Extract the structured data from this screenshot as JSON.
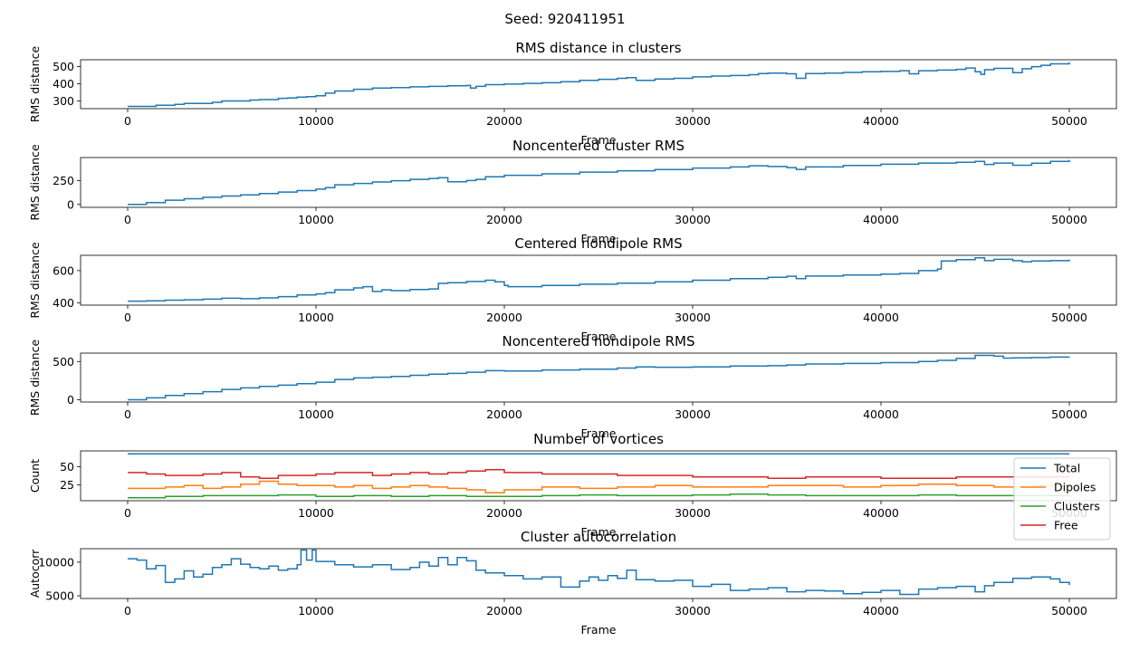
{
  "suptitle": "Seed: 920411951",
  "chart_data": [
    {
      "type": "line",
      "title": "RMS distance in clusters",
      "xlabel": "Frame",
      "ylabel": "RMS distance",
      "xlim": [
        -2500,
        52500
      ],
      "ylim": [
        255,
        540
      ],
      "xticks": [
        0,
        10000,
        20000,
        30000,
        40000,
        50000
      ],
      "yticks": [
        300,
        400,
        500
      ],
      "series": [
        {
          "color": "#1f77b4",
          "x": [
            0,
            1000,
            1500,
            2500,
            3000,
            4500,
            5000,
            6500,
            7000,
            8000,
            8500,
            9000,
            9500,
            10000,
            10500,
            11000,
            12000,
            13000,
            14000,
            15000,
            16000,
            17000,
            18000,
            18200,
            18500,
            19000,
            20000,
            21000,
            22000,
            23000,
            24000,
            25000,
            26000,
            26500,
            27000,
            28000,
            29000,
            30000,
            31000,
            32000,
            33000,
            33500,
            34000,
            35000,
            35500,
            36000,
            37000,
            38000,
            39000,
            40000,
            41000,
            41500,
            42000,
            43000,
            44000,
            44500,
            45000,
            45300,
            45500,
            46000,
            46500,
            47000,
            47500,
            48000,
            48500,
            49000,
            50000
          ],
          "y": [
            268,
            268,
            275,
            280,
            285,
            292,
            300,
            305,
            308,
            315,
            318,
            322,
            325,
            330,
            345,
            358,
            368,
            375,
            378,
            382,
            385,
            388,
            390,
            375,
            385,
            395,
            398,
            402,
            406,
            412,
            420,
            426,
            432,
            436,
            420,
            428,
            432,
            440,
            445,
            448,
            453,
            460,
            462,
            458,
            432,
            460,
            462,
            466,
            470,
            472,
            476,
            458,
            476,
            480,
            484,
            492,
            470,
            455,
            482,
            490,
            490,
            465,
            488,
            500,
            508,
            516,
            525
          ]
        }
      ]
    },
    {
      "type": "line",
      "title": "Noncentered cluster RMS",
      "xlabel": "Frame",
      "ylabel": "RMS distance",
      "xlim": [
        -2500,
        52500
      ],
      "ylim": [
        -30,
        490
      ],
      "xticks": [
        0,
        10000,
        20000,
        30000,
        40000,
        50000
      ],
      "yticks": [
        0,
        250
      ],
      "series": [
        {
          "color": "#1f77b4",
          "x": [
            0,
            1000,
            2000,
            3000,
            4000,
            5000,
            6000,
            7000,
            8000,
            9000,
            10000,
            10500,
            11000,
            12000,
            13000,
            14000,
            15000,
            16000,
            16500,
            17000,
            18000,
            18500,
            19000,
            20000,
            22000,
            24000,
            26000,
            28000,
            30000,
            32000,
            33000,
            34000,
            35000,
            35500,
            36000,
            38000,
            40000,
            42000,
            44000,
            45000,
            45500,
            46000,
            47000,
            48000,
            49000,
            50000
          ],
          "y": [
            0,
            20,
            45,
            60,
            75,
            88,
            100,
            115,
            130,
            145,
            160,
            175,
            205,
            220,
            235,
            248,
            262,
            272,
            280,
            238,
            250,
            262,
            290,
            305,
            320,
            338,
            352,
            365,
            380,
            392,
            404,
            396,
            385,
            366,
            392,
            408,
            420,
            432,
            440,
            450,
            418,
            432,
            410,
            430,
            450,
            465
          ]
        }
      ]
    },
    {
      "type": "line",
      "title": "Centered nondipole RMS",
      "xlabel": "Frame",
      "ylabel": "RMS distance",
      "xlim": [
        -2500,
        52500
      ],
      "ylim": [
        385,
        695
      ],
      "xticks": [
        0,
        10000,
        20000,
        30000,
        40000,
        50000
      ],
      "yticks": [
        400,
        600
      ],
      "series": [
        {
          "color": "#1f77b4",
          "x": [
            0,
            1000,
            2000,
            3000,
            4000,
            5000,
            6000,
            7000,
            8000,
            9000,
            10000,
            10500,
            11000,
            12000,
            12500,
            13000,
            13500,
            14000,
            15000,
            16000,
            16500,
            17000,
            18000,
            19000,
            19500,
            20000,
            20200,
            22000,
            24000,
            26000,
            28000,
            30000,
            32000,
            34000,
            35000,
            35500,
            36000,
            38000,
            40000,
            41000,
            42000,
            43000,
            43200,
            44000,
            45000,
            45500,
            46000,
            47000,
            47500,
            48000,
            49000,
            50000
          ],
          "y": [
            410,
            412,
            416,
            418,
            422,
            428,
            425,
            430,
            438,
            448,
            455,
            462,
            480,
            492,
            500,
            470,
            480,
            475,
            482,
            486,
            520,
            525,
            532,
            540,
            530,
            508,
            500,
            508,
            515,
            522,
            530,
            540,
            550,
            558,
            565,
            550,
            566,
            572,
            578,
            582,
            600,
            610,
            660,
            668,
            680,
            662,
            670,
            662,
            655,
            660,
            662,
            668
          ]
        }
      ]
    },
    {
      "type": "line",
      "title": "Noncentered nondipole RMS",
      "xlabel": "Frame",
      "ylabel": "RMS distance",
      "xlim": [
        -2500,
        52500
      ],
      "ylim": [
        -30,
        610
      ],
      "xticks": [
        0,
        10000,
        20000,
        30000,
        40000,
        50000
      ],
      "yticks": [
        0,
        500
      ],
      "series": [
        {
          "color": "#1f77b4",
          "x": [
            0,
            1000,
            2000,
            3000,
            4000,
            5000,
            6000,
            7000,
            8000,
            9000,
            10000,
            11000,
            12000,
            13000,
            14000,
            15000,
            16000,
            17000,
            18000,
            19000,
            20000,
            22000,
            24000,
            26000,
            27000,
            28000,
            30000,
            32000,
            34000,
            35000,
            36000,
            38000,
            40000,
            42000,
            43000,
            44000,
            45000,
            46000,
            46500,
            47000,
            48000,
            49000,
            50000
          ],
          "y": [
            0,
            25,
            55,
            80,
            105,
            135,
            155,
            175,
            190,
            210,
            230,
            265,
            285,
            295,
            305,
            320,
            335,
            345,
            360,
            380,
            375,
            390,
            400,
            415,
            430,
            425,
            430,
            440,
            445,
            455,
            468,
            475,
            485,
            500,
            515,
            540,
            580,
            570,
            545,
            548,
            552,
            558,
            560
          ]
        }
      ]
    },
    {
      "type": "line",
      "title": "Number of vortices",
      "xlabel": "Frame",
      "ylabel": "Count",
      "xlim": [
        -2500,
        52500
      ],
      "ylim": [
        3,
        72
      ],
      "xticks": [
        0,
        10000,
        20000,
        30000,
        40000,
        50000
      ],
      "yticks": [
        25,
        50
      ],
      "legend": "upper-right",
      "series": [
        {
          "name": "Total",
          "color": "#1f77b4",
          "x": [
            0,
            50000
          ],
          "y": [
            68,
            68
          ]
        },
        {
          "name": "Dipoles",
          "color": "#ff7f0e",
          "x": [
            0,
            1000,
            2000,
            3000,
            4000,
            5000,
            6000,
            7000,
            8000,
            9000,
            10000,
            11000,
            12000,
            13000,
            14000,
            15000,
            16000,
            17000,
            18000,
            19000,
            20000,
            22000,
            24000,
            26000,
            28000,
            30000,
            32000,
            34000,
            36000,
            38000,
            40000,
            42000,
            44000,
            46000,
            48000,
            50000
          ],
          "y": [
            20,
            20,
            22,
            24,
            20,
            22,
            26,
            30,
            26,
            24,
            24,
            22,
            24,
            20,
            22,
            24,
            22,
            20,
            18,
            14,
            18,
            22,
            20,
            22,
            24,
            22,
            22,
            24,
            24,
            22,
            24,
            26,
            24,
            22,
            24,
            22
          ]
        },
        {
          "name": "Clusters",
          "color": "#2ca02c",
          "x": [
            0,
            2000,
            4000,
            6000,
            8000,
            10000,
            12000,
            14000,
            16000,
            18000,
            20000,
            22000,
            24000,
            26000,
            28000,
            30000,
            32000,
            34000,
            36000,
            38000,
            40000,
            42000,
            44000,
            46000,
            48000,
            50000
          ],
          "y": [
            7,
            9,
            10,
            10,
            11,
            9,
            10,
            9,
            10,
            9,
            9,
            10,
            11,
            10,
            10,
            11,
            12,
            11,
            10,
            10,
            10,
            11,
            10,
            10,
            10,
            9
          ]
        },
        {
          "name": "Free",
          "color": "#d62728",
          "x": [
            0,
            1000,
            2000,
            3000,
            4000,
            5000,
            6000,
            7000,
            8000,
            9000,
            10000,
            11000,
            12000,
            13000,
            14000,
            15000,
            16000,
            17000,
            18000,
            19000,
            20000,
            22000,
            24000,
            26000,
            28000,
            30000,
            32000,
            34000,
            36000,
            38000,
            40000,
            42000,
            44000,
            46000,
            48000,
            50000
          ],
          "y": [
            42,
            40,
            38,
            38,
            40,
            42,
            36,
            34,
            38,
            38,
            40,
            42,
            42,
            38,
            40,
            42,
            40,
            42,
            44,
            46,
            42,
            40,
            40,
            38,
            38,
            36,
            36,
            34,
            36,
            36,
            34,
            34,
            36,
            36,
            36,
            36
          ]
        }
      ]
    },
    {
      "type": "line",
      "title": "Cluster autocorrelation",
      "xlabel": "Frame",
      "ylabel": "Autocorr",
      "xlim": [
        -2500,
        52500
      ],
      "ylim": [
        4600,
        12000
      ],
      "xticks": [
        0,
        10000,
        20000,
        30000,
        40000,
        50000
      ],
      "yticks": [
        5000,
        10000
      ],
      "series": [
        {
          "color": "#1f77b4",
          "x": [
            0,
            500,
            1000,
            1500,
            2000,
            2500,
            3000,
            3500,
            4000,
            4500,
            5000,
            5500,
            6000,
            6500,
            7000,
            7500,
            8000,
            8500,
            9000,
            9200,
            9500,
            9800,
            10000,
            11000,
            12000,
            13000,
            14000,
            15000,
            15500,
            16000,
            16500,
            17000,
            17500,
            18000,
            18500,
            19000,
            20000,
            21000,
            22000,
            23000,
            24000,
            24500,
            25000,
            25500,
            26000,
            26500,
            27000,
            28000,
            29000,
            30000,
            31000,
            32000,
            33000,
            34000,
            35000,
            36000,
            37000,
            38000,
            39000,
            40000,
            41000,
            42000,
            43000,
            44000,
            45000,
            45500,
            46000,
            47000,
            48000,
            49000,
            49500,
            50000
          ],
          "y": [
            10500,
            10300,
            9000,
            9500,
            7000,
            7500,
            8700,
            7800,
            8200,
            9200,
            9600,
            10500,
            9700,
            9200,
            9000,
            9400,
            8800,
            9000,
            9600,
            11800,
            10300,
            11800,
            10100,
            9600,
            9300,
            9600,
            8900,
            9200,
            10000,
            9400,
            10700,
            9600,
            10700,
            10200,
            8800,
            8400,
            8000,
            7500,
            7800,
            6300,
            7200,
            7800,
            7300,
            8000,
            7600,
            8800,
            7400,
            7200,
            7300,
            6400,
            6700,
            5800,
            6000,
            6200,
            5600,
            5800,
            5700,
            5300,
            5500,
            5800,
            5200,
            6000,
            6200,
            6400,
            5600,
            6500,
            7000,
            7600,
            7800,
            7500,
            7000,
            6600
          ]
        }
      ]
    }
  ]
}
